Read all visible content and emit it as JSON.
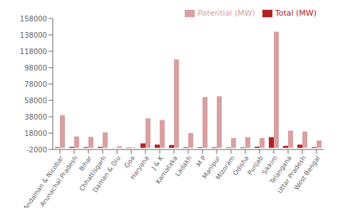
{
  "chart_data": {
    "type": "bar",
    "categories": [
      "Andaman & Nicobar",
      "Arunachal Pradesh",
      "Bihar",
      "Chhattisgarh",
      "Daman & Diu",
      "Goa",
      "Haryana",
      "J & K",
      "Karnataka",
      "Ladakh",
      "M P",
      "Manipur",
      "Mizoram",
      "Odisha",
      "Punjab",
      "Sikkim",
      "Telangana",
      "Uttar Pradesh",
      "West Bengal"
    ],
    "series": [
      {
        "name": "Total (MW)",
        "color": "#b22222",
        "values": [
          800,
          1200,
          1000,
          1200,
          100,
          500,
          5500,
          4000,
          3500,
          800,
          800,
          800,
          600,
          700,
          1500,
          13000,
          2500,
          4000,
          1000
        ]
      },
      {
        "name": "Potential (MW)",
        "color": "#d9a0a0",
        "values": [
          40000,
          14000,
          13500,
          19000,
          2000,
          500,
          36000,
          34000,
          108000,
          18000,
          62000,
          63000,
          12000,
          13000,
          12000,
          142000,
          21000,
          20000,
          9000
        ]
      }
    ],
    "ylim": [
      -2000,
      158000
    ],
    "yticks": [
      -2000,
      18000,
      38000,
      58000,
      78000,
      98000,
      118000,
      138000,
      158000
    ],
    "grid": false,
    "legend": "upper right"
  }
}
